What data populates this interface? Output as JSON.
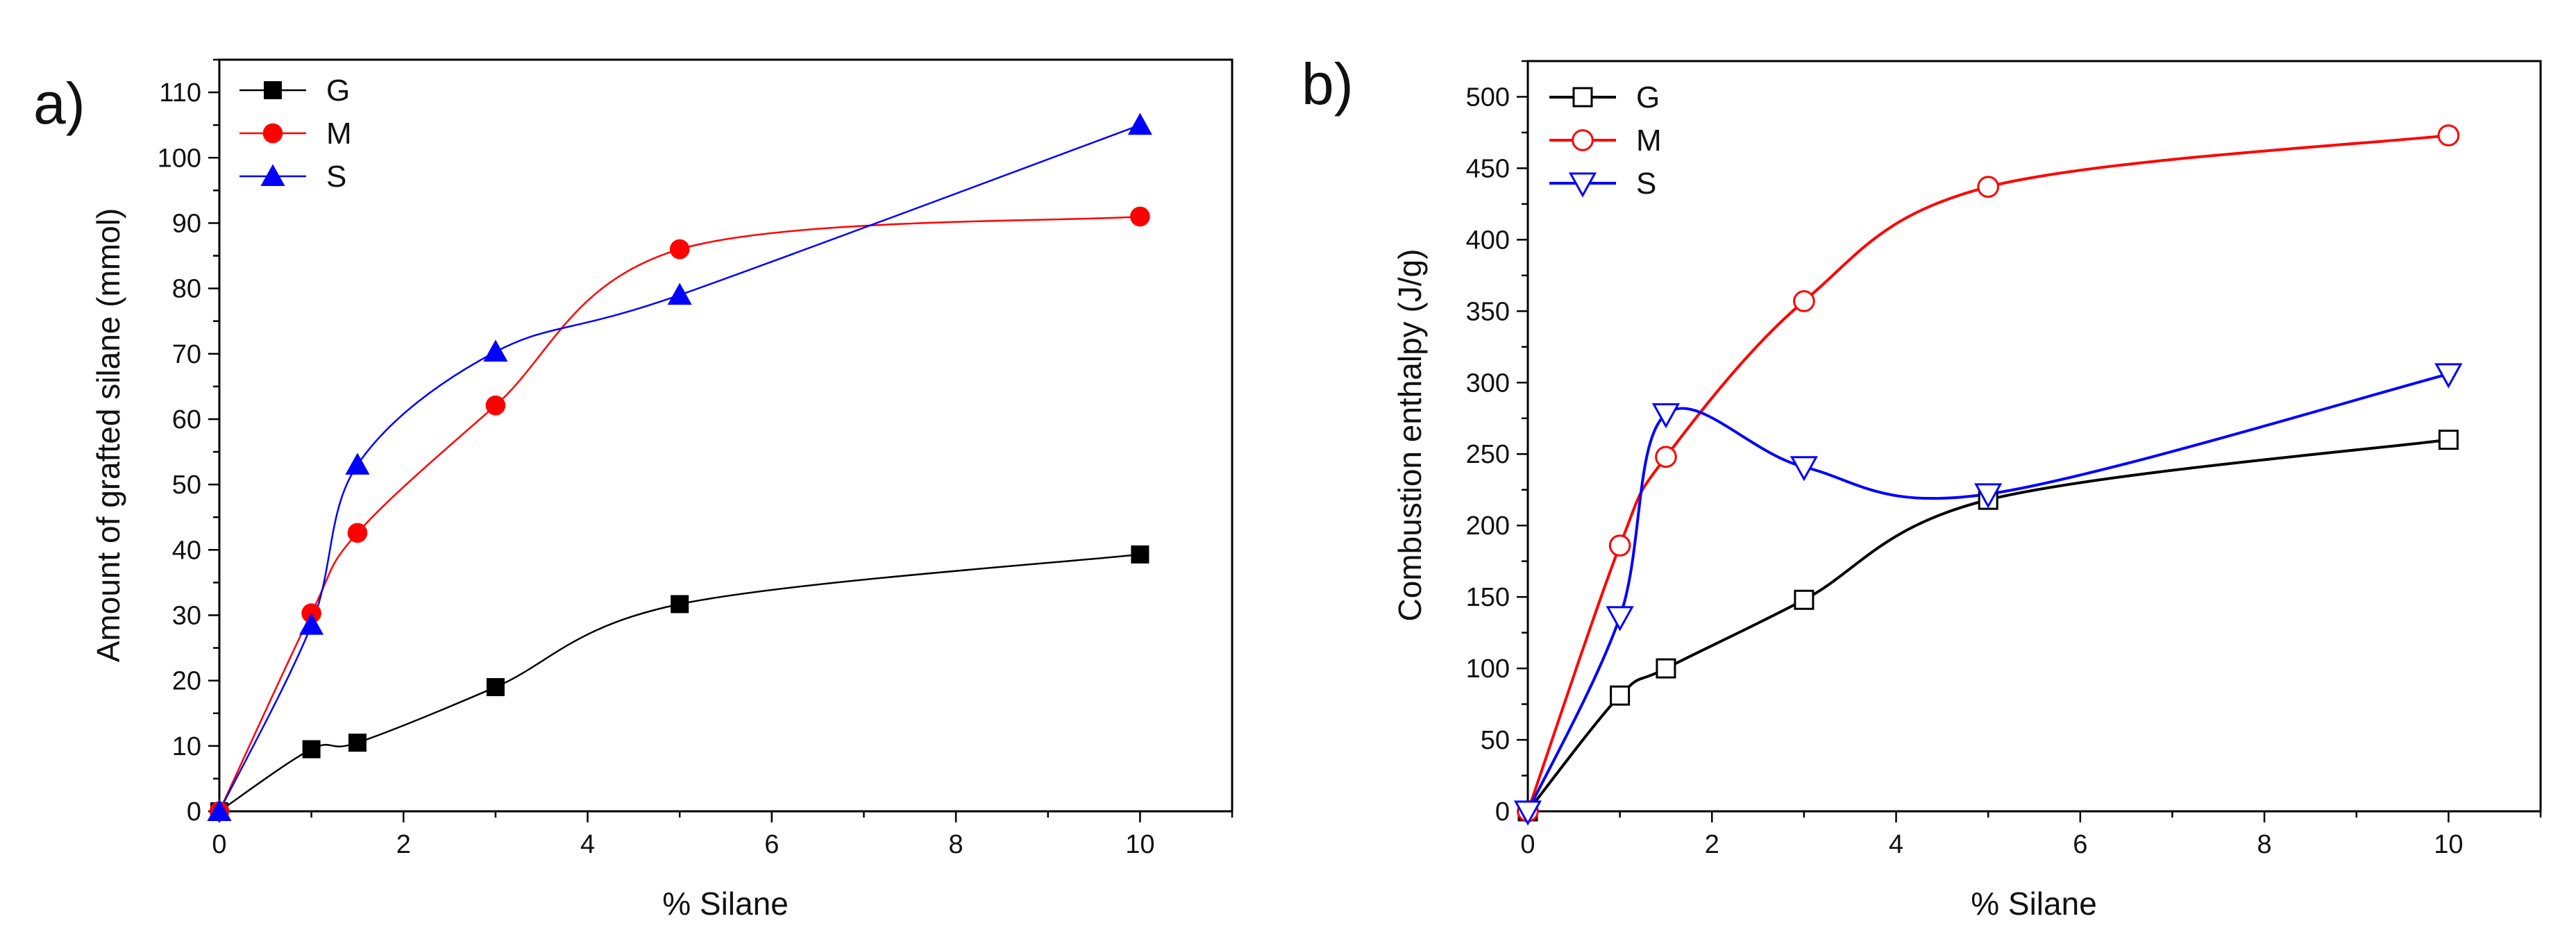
{
  "chart_data": [
    {
      "panel": "a)",
      "type": "scatter",
      "xlabel": "% Silane",
      "ylabel": "Amount of grafted silane (mmol)",
      "xlim": [
        0,
        11
      ],
      "ylim": [
        0,
        115
      ],
      "xticks": [
        0,
        2,
        4,
        6,
        8,
        10
      ],
      "yticks": [
        0,
        10,
        20,
        30,
        40,
        50,
        60,
        70,
        80,
        90,
        100,
        110
      ],
      "marker_style": "filled",
      "legend_position": "top-left",
      "series": [
        {
          "name": "G",
          "color": "#000000",
          "marker": "square",
          "x": [
            0,
            1,
            1.5,
            3,
            5,
            10
          ],
          "y": [
            0,
            9.5,
            10.5,
            19,
            31.7,
            39.3
          ]
        },
        {
          "name": "M",
          "color": "#ff0000",
          "marker": "circle",
          "x": [
            0,
            1,
            1.5,
            3,
            5,
            10
          ],
          "y": [
            0,
            30.3,
            42.6,
            62.1,
            86,
            91
          ]
        },
        {
          "name": "S",
          "color": "#0000ff",
          "marker": "triangle-up",
          "x": [
            0,
            1,
            1.5,
            3,
            5,
            10
          ],
          "y": [
            0,
            28.5,
            53,
            70.3,
            79,
            105
          ]
        }
      ]
    },
    {
      "panel": "b)",
      "type": "scatter",
      "xlabel": "% Silane",
      "ylabel": "Combustion enthalpy (J/g)",
      "xlim": [
        0,
        11
      ],
      "ylim": [
        0,
        525
      ],
      "xticks": [
        0,
        2,
        4,
        6,
        8,
        10
      ],
      "yticks": [
        0,
        50,
        100,
        150,
        200,
        250,
        300,
        350,
        400,
        450,
        500
      ],
      "marker_style": "open",
      "legend_position": "top-left",
      "series": [
        {
          "name": "G",
          "color": "#000000",
          "marker": "square",
          "x": [
            0,
            1,
            1.5,
            3,
            5,
            10
          ],
          "y": [
            0,
            81,
            100,
            148,
            218,
            260
          ]
        },
        {
          "name": "M",
          "color": "#ff0000",
          "marker": "circle",
          "x": [
            0,
            1,
            1.5,
            3,
            5,
            10
          ],
          "y": [
            0,
            186,
            248,
            357,
            437,
            473
          ]
        },
        {
          "name": "S",
          "color": "#0000ff",
          "marker": "triangle-down",
          "x": [
            0,
            1,
            1.5,
            3,
            5,
            10
          ],
          "y": [
            0,
            136,
            278,
            241,
            222,
            306
          ]
        }
      ]
    }
  ]
}
